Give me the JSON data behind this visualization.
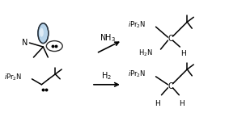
{
  "bg_color": "#ffffff",
  "line_color": "#000000",
  "text_color": "#000000",
  "figsize": [
    2.83,
    1.4
  ],
  "dpi": 100,
  "nh3_label": "NH$_3$",
  "h2_label": "H$_2$",
  "N_label": "N",
  "orbital_fill": "#b8d4ea",
  "orbital_edge": "#2060a0",
  "orbital_edge_dark": "#303030"
}
